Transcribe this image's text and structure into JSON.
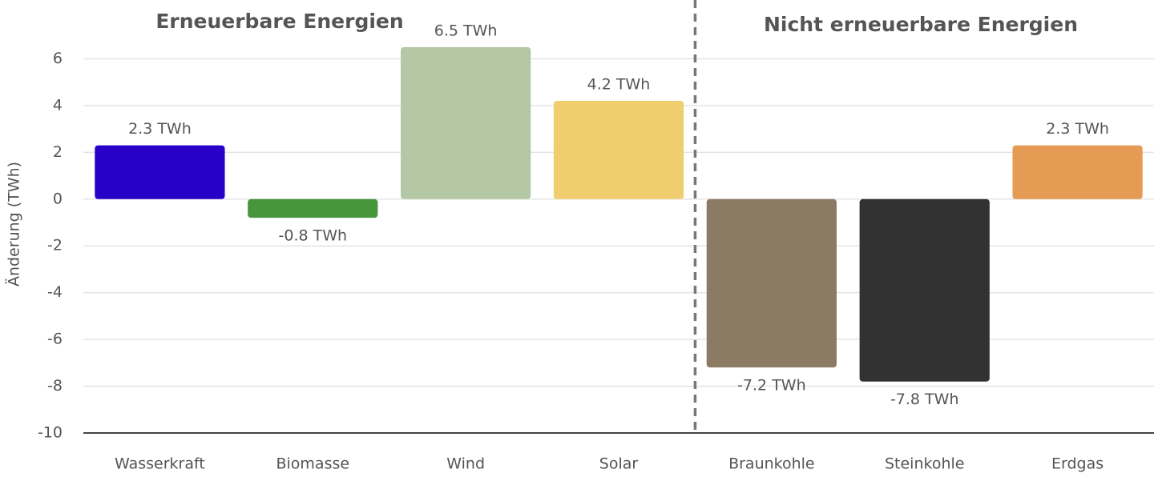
{
  "chart_data": {
    "type": "bar",
    "group_titles": [
      "Erneuerbare Energien",
      "Nicht erneuerbare Energien"
    ],
    "y_label": "Änderung (TWh)",
    "categories": [
      "Wasserkraft",
      "Biomasse",
      "Wind",
      "Solar",
      "Braunkohle",
      "Steinkohle",
      "Erdgas"
    ],
    "values": [
      2.3,
      -0.8,
      6.5,
      4.2,
      -7.2,
      -7.8,
      2.3
    ],
    "value_labels": [
      "2.3 TWh",
      "-0.8 TWh",
      "6.5 TWh",
      "4.2 TWh",
      "-7.2 TWh",
      "-7.8 TWh",
      "2.3 TWh"
    ],
    "colors": [
      "#2800c8",
      "#46963c",
      "#b4c8a5",
      "#f0cd6e",
      "#8c7b64",
      "#323232",
      "#e69b55"
    ],
    "ylim": [
      -10,
      8
    ],
    "yticks": [
      -10,
      -8,
      -6,
      -4,
      -2,
      0,
      2,
      4,
      6
    ],
    "grid": true
  }
}
